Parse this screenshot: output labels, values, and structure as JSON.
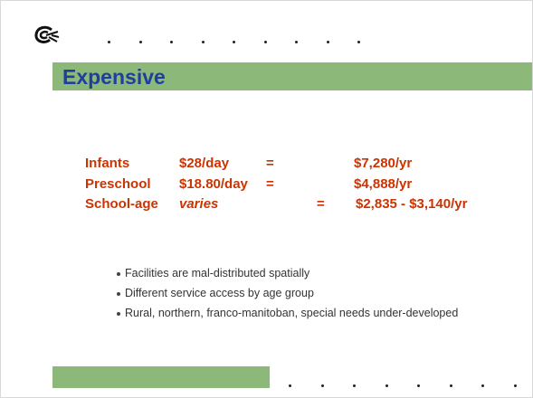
{
  "title": "Expensive",
  "rates": [
    [
      "Infants",
      "$28/day",
      "=",
      "$7,280/yr"
    ],
    [
      "Preschool",
      "$18.80/day",
      "=",
      "$4,888/yr"
    ],
    [
      "School-age",
      "varies",
      "=",
      "$2,835 - $3,140/yr"
    ]
  ],
  "bullets": [
    "Facilities are mal-distributed spatially",
    "Different service access by age group",
    "Rural, northern, franco-manitoban, special needs under-developed"
  ]
}
